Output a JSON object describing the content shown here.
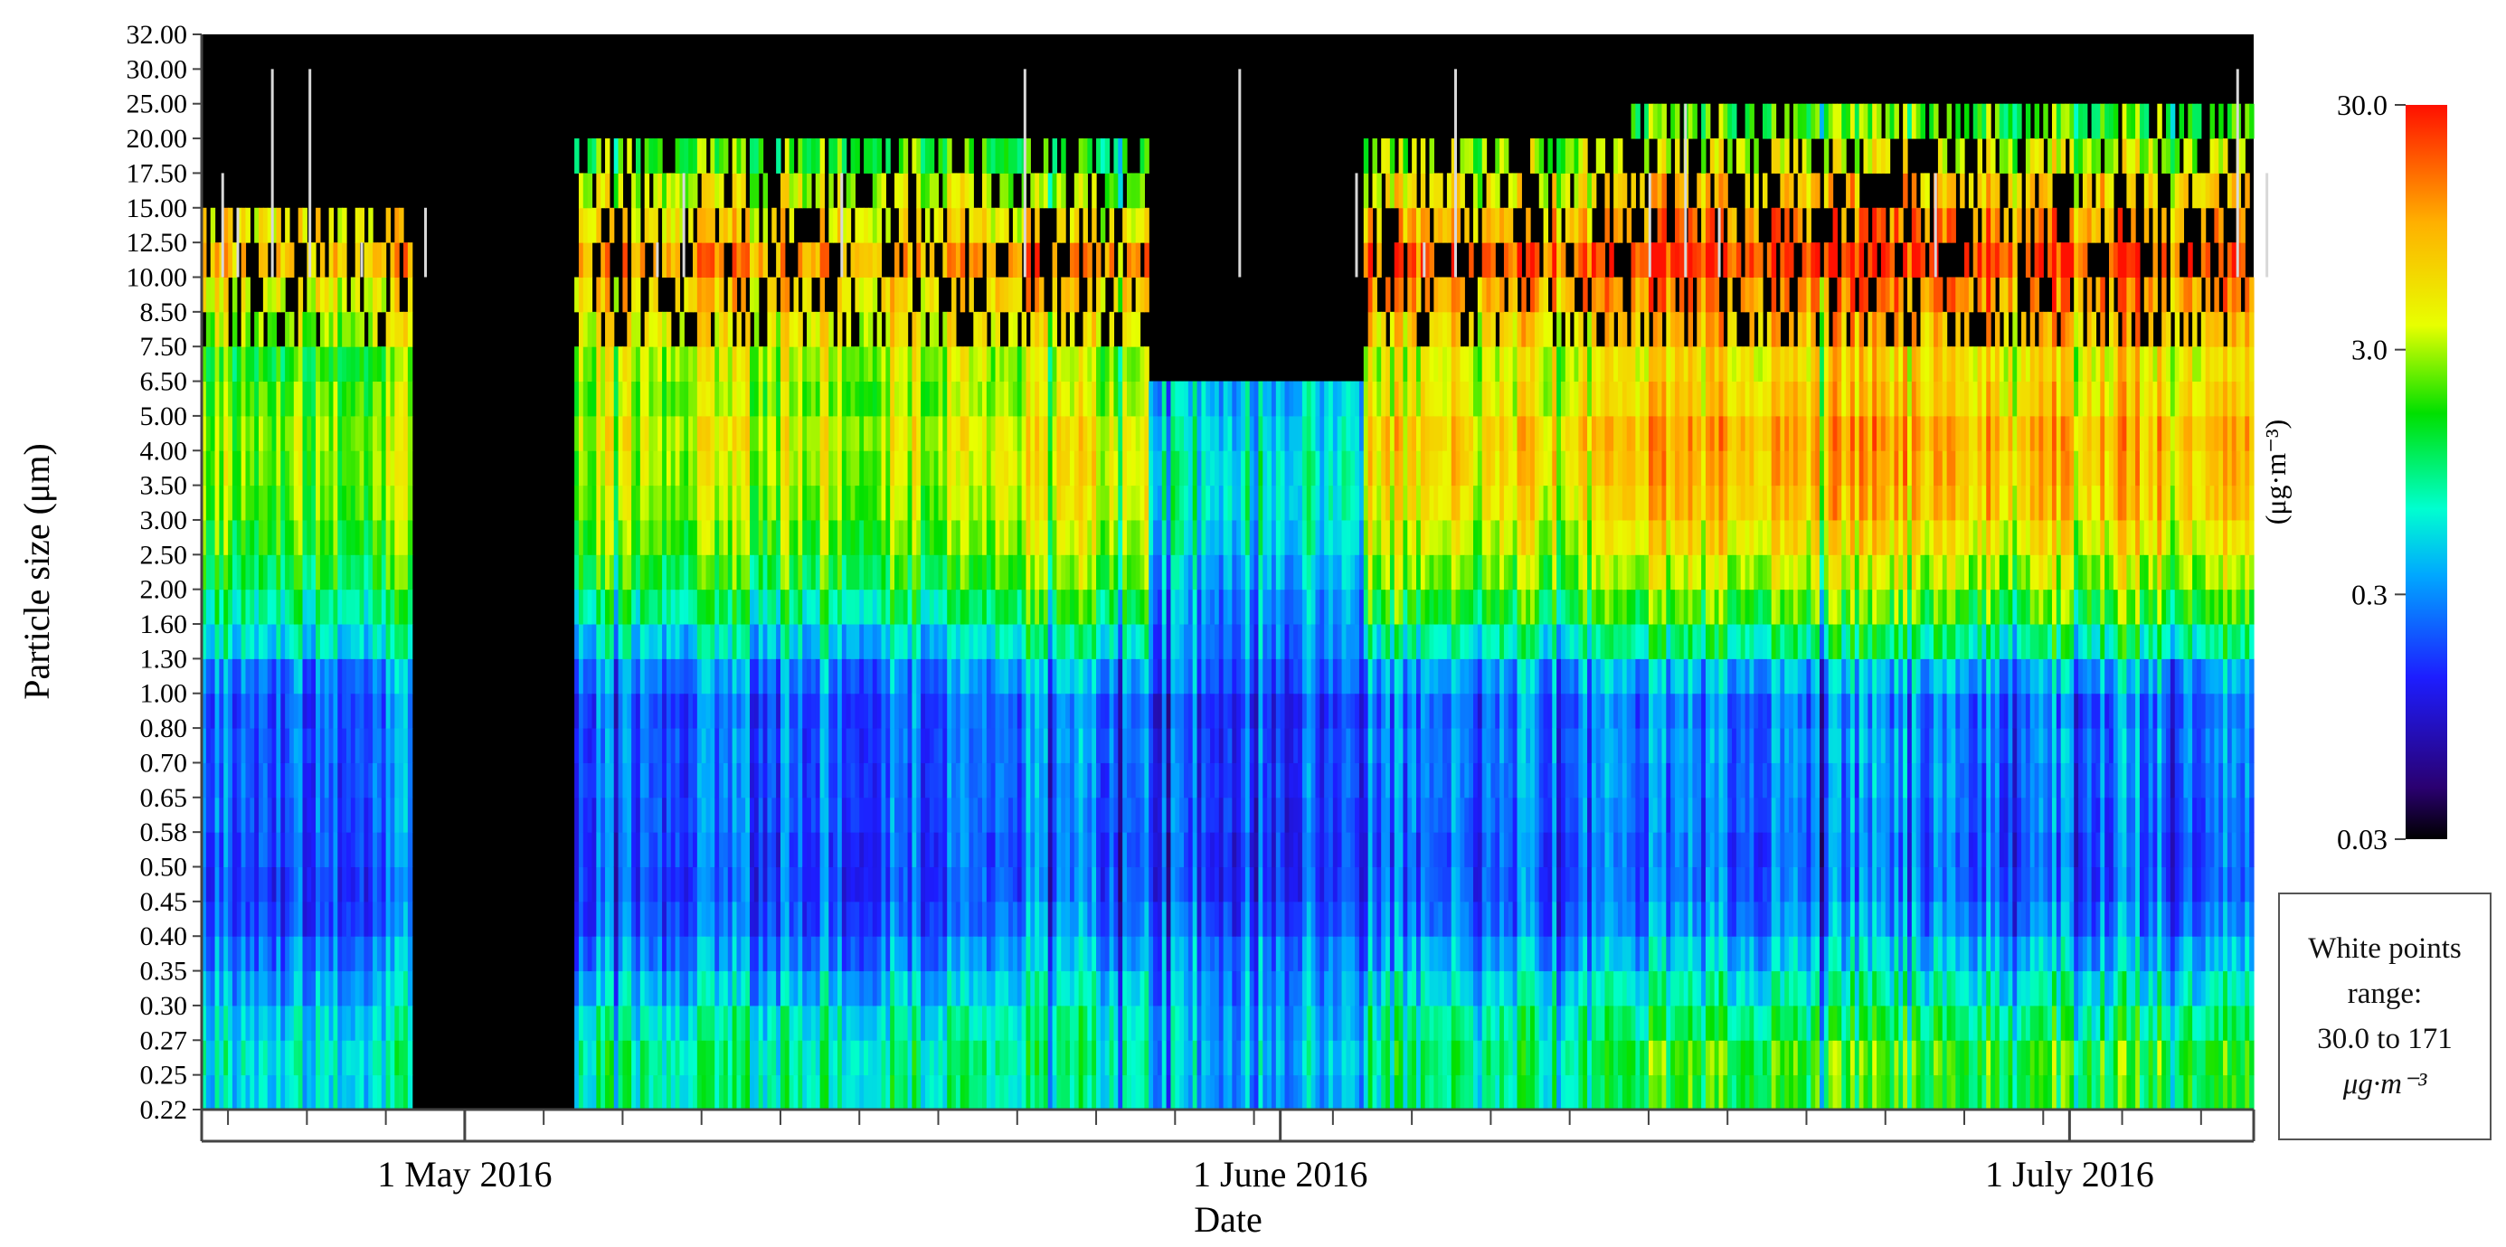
{
  "chart_data": {
    "type": "heatmap",
    "title": "",
    "xlabel": "Date",
    "ylabel": "Particle size (μm)",
    "x_range": [
      "2016-04-21",
      "2016-07-08"
    ],
    "x_ticks": [
      {
        "date": "2016-05-01",
        "label": "1 May 2016"
      },
      {
        "date": "2016-06-01",
        "label": "1 June 2016"
      },
      {
        "date": "2016-07-01",
        "label": "1 July 2016"
      }
    ],
    "minor_tick_interval_days": 3,
    "y_bins": [
      "0.22",
      "0.25",
      "0.27",
      "0.30",
      "0.35",
      "0.40",
      "0.45",
      "0.50",
      "0.58",
      "0.65",
      "0.70",
      "0.80",
      "1.00",
      "1.30",
      "1.60",
      "2.00",
      "2.50",
      "3.00",
      "3.50",
      "4.00",
      "5.00",
      "6.50",
      "7.50",
      "8.50",
      "10.00",
      "12.50",
      "15.00",
      "17.50",
      "20.00",
      "25.00",
      "30.00",
      "32.00"
    ],
    "colorbar": {
      "label": "(μg·m⁻³)",
      "scale": "log",
      "range": [
        0.03,
        30.0
      ],
      "tick_labels": [
        "30.0",
        "3.0",
        "0.3",
        "0.03"
      ],
      "colormap": [
        "#000000",
        "#2a0070",
        "#1d1dff",
        "#00b0ff",
        "#00ffd0",
        "#00e000",
        "#e8ff00",
        "#ffb000",
        "#ff2000"
      ]
    },
    "no_data_periods": [
      [
        "2016-04-29",
        "2016-05-05"
      ]
    ],
    "patterns": [
      {
        "period": [
          "2016-04-21",
          "2016-04-29"
        ],
        "bin_levels": [
          0.6,
          0.7,
          0.55,
          0.4,
          0.3,
          0.22,
          0.2,
          0.22,
          0.24,
          0.25,
          0.26,
          0.25,
          0.3,
          0.65,
          1.0,
          1.5,
          2.0,
          2.5,
          2.8,
          3.0,
          2.4,
          1.8,
          3.5,
          5.0,
          9.0,
          6.0,
          0,
          0,
          0,
          0,
          0
        ]
      },
      {
        "period": [
          "2016-05-05",
          "2016-05-21"
        ],
        "bin_levels": [
          0.9,
          0.9,
          0.7,
          0.45,
          0.3,
          0.22,
          0.2,
          0.21,
          0.23,
          0.24,
          0.24,
          0.23,
          0.3,
          0.55,
          1.0,
          1.6,
          2.3,
          3.0,
          3.5,
          4.0,
          3.0,
          3.5,
          5.0,
          7.0,
          12.0,
          6.0,
          4.0,
          2.0,
          0,
          0,
          0
        ]
      },
      {
        "period": [
          "2016-05-21",
          "2016-05-27"
        ],
        "bin_levels": [
          0.8,
          0.9,
          0.8,
          0.6,
          0.4,
          0.3,
          0.25,
          0.25,
          0.26,
          0.28,
          0.3,
          0.28,
          0.4,
          0.8,
          1.5,
          2.5,
          3.5,
          4.5,
          5.0,
          5.0,
          3.5,
          3.0,
          5.0,
          8.0,
          15.0,
          5.0,
          2.5,
          1.5,
          0,
          0,
          0
        ]
      },
      {
        "period": [
          "2016-05-27",
          "2016-06-04"
        ],
        "bin_levels": [
          0.4,
          0.45,
          0.4,
          0.35,
          0.3,
          0.22,
          0.18,
          0.18,
          0.19,
          0.2,
          0.2,
          0.18,
          0.25,
          0.3,
          0.35,
          0.45,
          0.6,
          0.7,
          0.7,
          0.6,
          0.5,
          0,
          0,
          0,
          0,
          0,
          0,
          0,
          0,
          0,
          0
        ]
      },
      {
        "period": [
          "2016-06-04",
          "2016-06-14"
        ],
        "bin_levels": [
          0.9,
          1.0,
          0.8,
          0.55,
          0.35,
          0.25,
          0.22,
          0.22,
          0.24,
          0.26,
          0.27,
          0.25,
          0.35,
          0.75,
          1.5,
          2.5,
          3.5,
          5.0,
          6.0,
          6.5,
          4.5,
          4.0,
          6.0,
          10.0,
          18.0,
          9.0,
          5.0,
          3.0,
          0,
          0,
          0
        ]
      },
      {
        "period": [
          "2016-06-14",
          "2016-07-08"
        ],
        "bin_levels": [
          1.6,
          1.8,
          1.1,
          0.7,
          0.45,
          0.3,
          0.25,
          0.24,
          0.26,
          0.28,
          0.3,
          0.27,
          0.4,
          1.0,
          2.0,
          3.5,
          5.5,
          8.0,
          9.0,
          10.0,
          7.0,
          6.0,
          9.0,
          14.0,
          25.0,
          14.0,
          8.0,
          4.0,
          2.0,
          0,
          0
        ]
      }
    ]
  },
  "note": {
    "line1": "White points",
    "line2": "range:",
    "line3": "30.0 to 171",
    "line4": "μg·m⁻³"
  }
}
